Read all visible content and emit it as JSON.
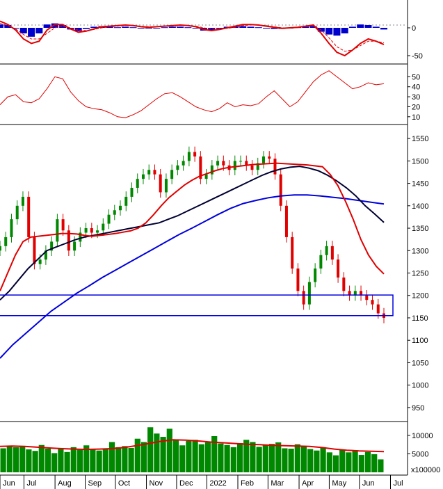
{
  "chart_data": [
    {
      "panel": "macd",
      "type": "line",
      "y_ticks": [
        "0",
        "-50"
      ],
      "y_tick_values": [
        0,
        -50
      ],
      "ylim": [
        -60,
        45
      ],
      "series": [
        {
          "color": "#e00000",
          "style": "solid",
          "values": [
            12,
            6,
            -4,
            -20,
            -28,
            -24,
            -4,
            6,
            6,
            -2,
            -8,
            -6,
            -2,
            2,
            3,
            4,
            5,
            4,
            2,
            1,
            2,
            3,
            4,
            5,
            4,
            2,
            -3,
            -5,
            -3,
            0,
            3,
            6,
            6,
            5,
            3,
            1,
            -1,
            0,
            1,
            3,
            5,
            -10,
            -28,
            -44,
            -50,
            -40,
            -28,
            -20,
            -24,
            -30
          ]
        },
        {
          "color": "#e00000",
          "style": "dashed",
          "values": [
            8,
            4,
            -2,
            -12,
            -20,
            -20,
            -10,
            0,
            3,
            0,
            -4,
            -5,
            -3,
            0,
            2,
            3,
            4,
            4,
            3,
            2,
            2,
            3,
            3,
            4,
            4,
            3,
            0,
            -2,
            -2,
            -1,
            1,
            4,
            5,
            5,
            4,
            2,
            0,
            0,
            1,
            2,
            4,
            -4,
            -18,
            -34,
            -42,
            -40,
            -32,
            -24,
            -24,
            -27
          ]
        }
      ],
      "histogram": [
        6,
        5,
        0,
        -10,
        -16,
        -10,
        6,
        8,
        5,
        -3,
        -6,
        -2,
        2,
        3,
        2,
        1,
        2,
        1,
        -1,
        -1,
        0,
        1,
        2,
        2,
        1,
        -1,
        -5,
        -4,
        -1,
        2,
        3,
        3,
        2,
        1,
        -1,
        -2,
        -2,
        0,
        1,
        2,
        3,
        -7,
        -12,
        -14,
        -10,
        2,
        6,
        5,
        2,
        -3
      ],
      "histogram_colors": {
        "positive": "#0000cc",
        "negative": "#0000cc"
      }
    },
    {
      "panel": "rsi",
      "type": "line",
      "y_ticks": [
        "50",
        "40",
        "30",
        "20",
        "10"
      ],
      "y_tick_values": [
        50,
        40,
        30,
        20,
        10
      ],
      "ylim": [
        5,
        60
      ],
      "series": [
        {
          "color": "#e00000",
          "style": "solid",
          "values": [
            22,
            30,
            32,
            25,
            24,
            28,
            38,
            50,
            48,
            35,
            26,
            20,
            18,
            17,
            14,
            10,
            9,
            12,
            16,
            22,
            28,
            33,
            34,
            30,
            25,
            20,
            17,
            15,
            18,
            24,
            20,
            22,
            21,
            23,
            30,
            36,
            28,
            20,
            25,
            35,
            45,
            52,
            56,
            50,
            44,
            38,
            40,
            44,
            42,
            43
          ]
        }
      ]
    },
    {
      "panel": "price",
      "type": "candlestick",
      "y_ticks": [
        "1550",
        "1500",
        "1450",
        "1400",
        "1350",
        "1300",
        "1250",
        "1200",
        "1150",
        "1100",
        "1050",
        "1000",
        "950"
      ],
      "y_tick_values": [
        1550,
        1500,
        1450,
        1400,
        1350,
        1300,
        1250,
        1200,
        1150,
        1100,
        1050,
        1000,
        950
      ],
      "ylim": [
        925,
        1575
      ],
      "close": [
        1310,
        1330,
        1370,
        1400,
        1420,
        1330,
        1270,
        1280,
        1300,
        1320,
        1370,
        1345,
        1300,
        1320,
        1340,
        1350,
        1340,
        1345,
        1360,
        1380,
        1390,
        1400,
        1420,
        1440,
        1460,
        1470,
        1480,
        1470,
        1430,
        1460,
        1480,
        1490,
        1500,
        1520,
        1510,
        1460,
        1470,
        1490,
        1500,
        1490,
        1480,
        1500,
        1500,
        1490,
        1480,
        1495,
        1510,
        1505,
        1470,
        1400,
        1330,
        1260,
        1210,
        1180,
        1230,
        1260,
        1290,
        1310,
        1280,
        1240,
        1210,
        1200,
        1210,
        1200,
        1190,
        1180,
        1160,
        1150
      ],
      "ma_short": {
        "color": "#e00000",
        "values": [
          1210,
          1250,
          1290,
          1320,
          1330,
          1332,
          1334,
          1336,
          1338,
          1338,
          1337,
          1334,
          1332,
          1334,
          1336,
          1338,
          1341,
          1344,
          1350,
          1362,
          1380,
          1400,
          1418,
          1432,
          1446,
          1457,
          1466,
          1472,
          1478,
          1483,
          1486,
          1488,
          1490,
          1492,
          1493,
          1494,
          1495,
          1494,
          1493,
          1492,
          1491,
          1489,
          1487,
          1470,
          1445,
          1410,
          1370,
          1325,
          1290,
          1265,
          1248
        ]
      },
      "ma_mid": {
        "color": "#000033",
        "values": [
          1190,
          1210,
          1235,
          1260,
          1280,
          1300,
          1308,
          1316,
          1324,
          1330,
          1334,
          1338,
          1342,
          1346,
          1350,
          1354,
          1358,
          1362,
          1370,
          1378,
          1388,
          1398,
          1408,
          1418,
          1428,
          1438,
          1448,
          1458,
          1468,
          1476,
          1482,
          1486,
          1488,
          1484,
          1478,
          1468,
          1455,
          1440,
          1422,
          1400,
          1382,
          1363
        ]
      },
      "ma_long": {
        "color": "#0000dd",
        "values": [
          1060,
          1090,
          1115,
          1140,
          1165,
          1185,
          1205,
          1222,
          1240,
          1256,
          1272,
          1288,
          1304,
          1320,
          1336,
          1350,
          1365,
          1380,
          1394,
          1405,
          1412,
          1418,
          1422,
          1424,
          1424,
          1422,
          1419,
          1416,
          1412,
          1408,
          1404
        ]
      },
      "box": {
        "color": "#0000dd",
        "top": 1201,
        "bottom": 1155
      }
    },
    {
      "panel": "volume",
      "type": "bar",
      "y_ticks": [
        "10000",
        "5000"
      ],
      "y_tick_values": [
        10000,
        5000
      ],
      "ylim": [
        0,
        13000
      ],
      "multiplier": "x100000",
      "bar_color": "#008800",
      "ma_color": "#e00000",
      "values": [
        6500,
        7200,
        6800,
        7000,
        6200,
        5800,
        7400,
        6400,
        5200,
        6600,
        5500,
        6800,
        6100,
        7300,
        6200,
        5900,
        6500,
        8200,
        6800,
        7100,
        6600,
        9100,
        8200,
        12200,
        10500,
        9600,
        11800,
        8900,
        7300,
        8500,
        8800,
        7600,
        8100,
        9800,
        7800,
        7400,
        6800,
        7900,
        8800,
        8200,
        6900,
        7400,
        7700,
        8100,
        6500,
        6400,
        7600,
        7100,
        6300,
        5900,
        6800,
        5400,
        4600,
        6100,
        5400,
        6000,
        4700,
        5500,
        4900,
        3500
      ],
      "ma_values": [
        7000,
        7100,
        7000,
        6800,
        6600,
        6400,
        6300,
        6200,
        6300,
        6400,
        6700,
        7200,
        7800,
        8400,
        8800,
        8700,
        8500,
        8200,
        8000,
        7800,
        7600,
        7500,
        7300,
        7200,
        7100,
        7000,
        6700,
        6300,
        6000,
        5800,
        5700,
        5600
      ]
    }
  ],
  "x_axis": {
    "labels": [
      "Jun",
      "Jul",
      "Aug",
      "Sep",
      "Oct",
      "Nov",
      "Dec",
      "2022",
      "Feb",
      "Mar",
      "Apr",
      "May",
      "Jun",
      "Jul"
    ],
    "units": [
      0,
      27,
      62,
      96,
      130,
      165,
      199,
      233,
      268,
      302,
      337,
      371,
      405,
      440
    ]
  }
}
